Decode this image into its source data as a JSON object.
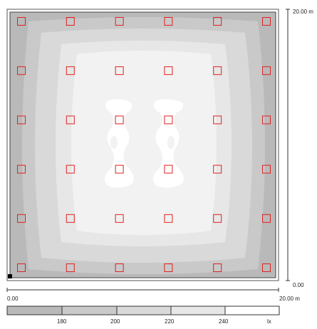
{
  "plan": {
    "luminaire_grid": {
      "columns": 6,
      "rows": 6
    },
    "luminaire_color": "#e02020",
    "isolux_colors": [
      "#b9b9b9",
      "#c9c9c9",
      "#d9d9d9",
      "#e7e7e7",
      "#f2f2f2",
      "#ffffff"
    ]
  },
  "axes": {
    "y_top_label": "20.00 m",
    "y_bottom_label": "0.00",
    "x_left_label": "0.00",
    "x_right_label": "20.00 m"
  },
  "legend": {
    "ticks": [
      "180",
      "200",
      "220",
      "240"
    ],
    "unit": "lx",
    "colors": [
      "#b9b9b9",
      "#c9c9c9",
      "#d9d9d9",
      "#e7e7e7",
      "#ffffff"
    ]
  }
}
